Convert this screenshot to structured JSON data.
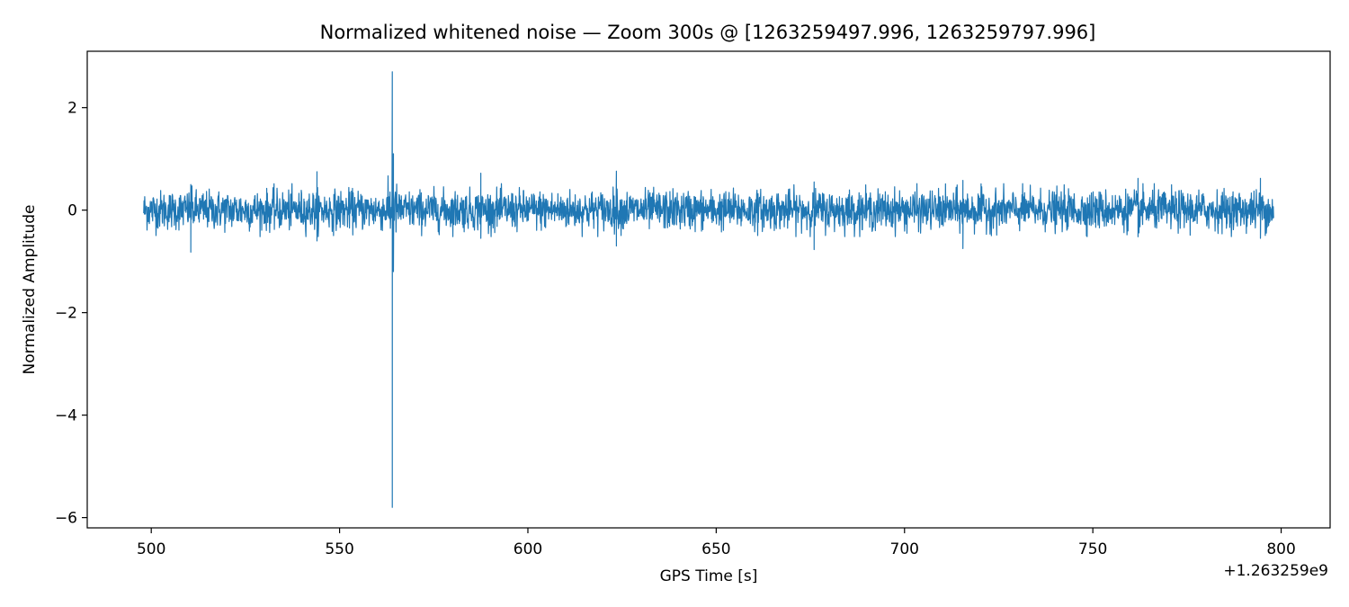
{
  "chart_data": {
    "type": "line",
    "title": "Normalized whitened noise — Zoom 300s @ [1263259497.996, 1263259797.996]",
    "xlabel": "GPS Time [s]",
    "ylabel": "Normalized Amplitude",
    "x_offset_label": "+1.263259e9",
    "x_offset": 1263259000,
    "xlim": [
      483,
      813
    ],
    "ylim": [
      -6.2,
      3.1
    ],
    "x_ticks": [
      500,
      550,
      600,
      650,
      700,
      750,
      800
    ],
    "x_tick_labels": [
      "500",
      "550",
      "600",
      "650",
      "700",
      "750",
      "800"
    ],
    "y_ticks": [
      2,
      0,
      -2,
      -4,
      -6
    ],
    "y_tick_labels": [
      "2",
      "0",
      "−2",
      "−4",
      "−6"
    ],
    "grid": false,
    "legend": "none",
    "series": [
      {
        "color": "#1f77b4",
        "x_range": [
          497.996,
          797.996
        ],
        "noise_amplitude": 0.45,
        "peak_features": [
          {
            "x": 564.0,
            "y_max": 2.7,
            "y_min": -5.8
          },
          {
            "x": 564.3,
            "y_max": 1.1,
            "y_min": -1.2
          },
          {
            "x": 544.0,
            "y_max": 0.75,
            "y_min": -0.6
          },
          {
            "x": 510.5,
            "y_max": 0.5,
            "y_min": -0.82
          },
          {
            "x": 587.5,
            "y_max": 0.72,
            "y_min": -0.55
          },
          {
            "x": 623.5,
            "y_max": 0.76,
            "y_min": -0.7
          },
          {
            "x": 676.0,
            "y_max": 0.55,
            "y_min": -0.77
          },
          {
            "x": 715.5,
            "y_max": 0.58,
            "y_min": -0.75
          },
          {
            "x": 762.0,
            "y_max": 0.62,
            "y_min": -0.52
          },
          {
            "x": 794.5,
            "y_max": 0.62,
            "y_min": -0.55
          }
        ]
      }
    ]
  }
}
